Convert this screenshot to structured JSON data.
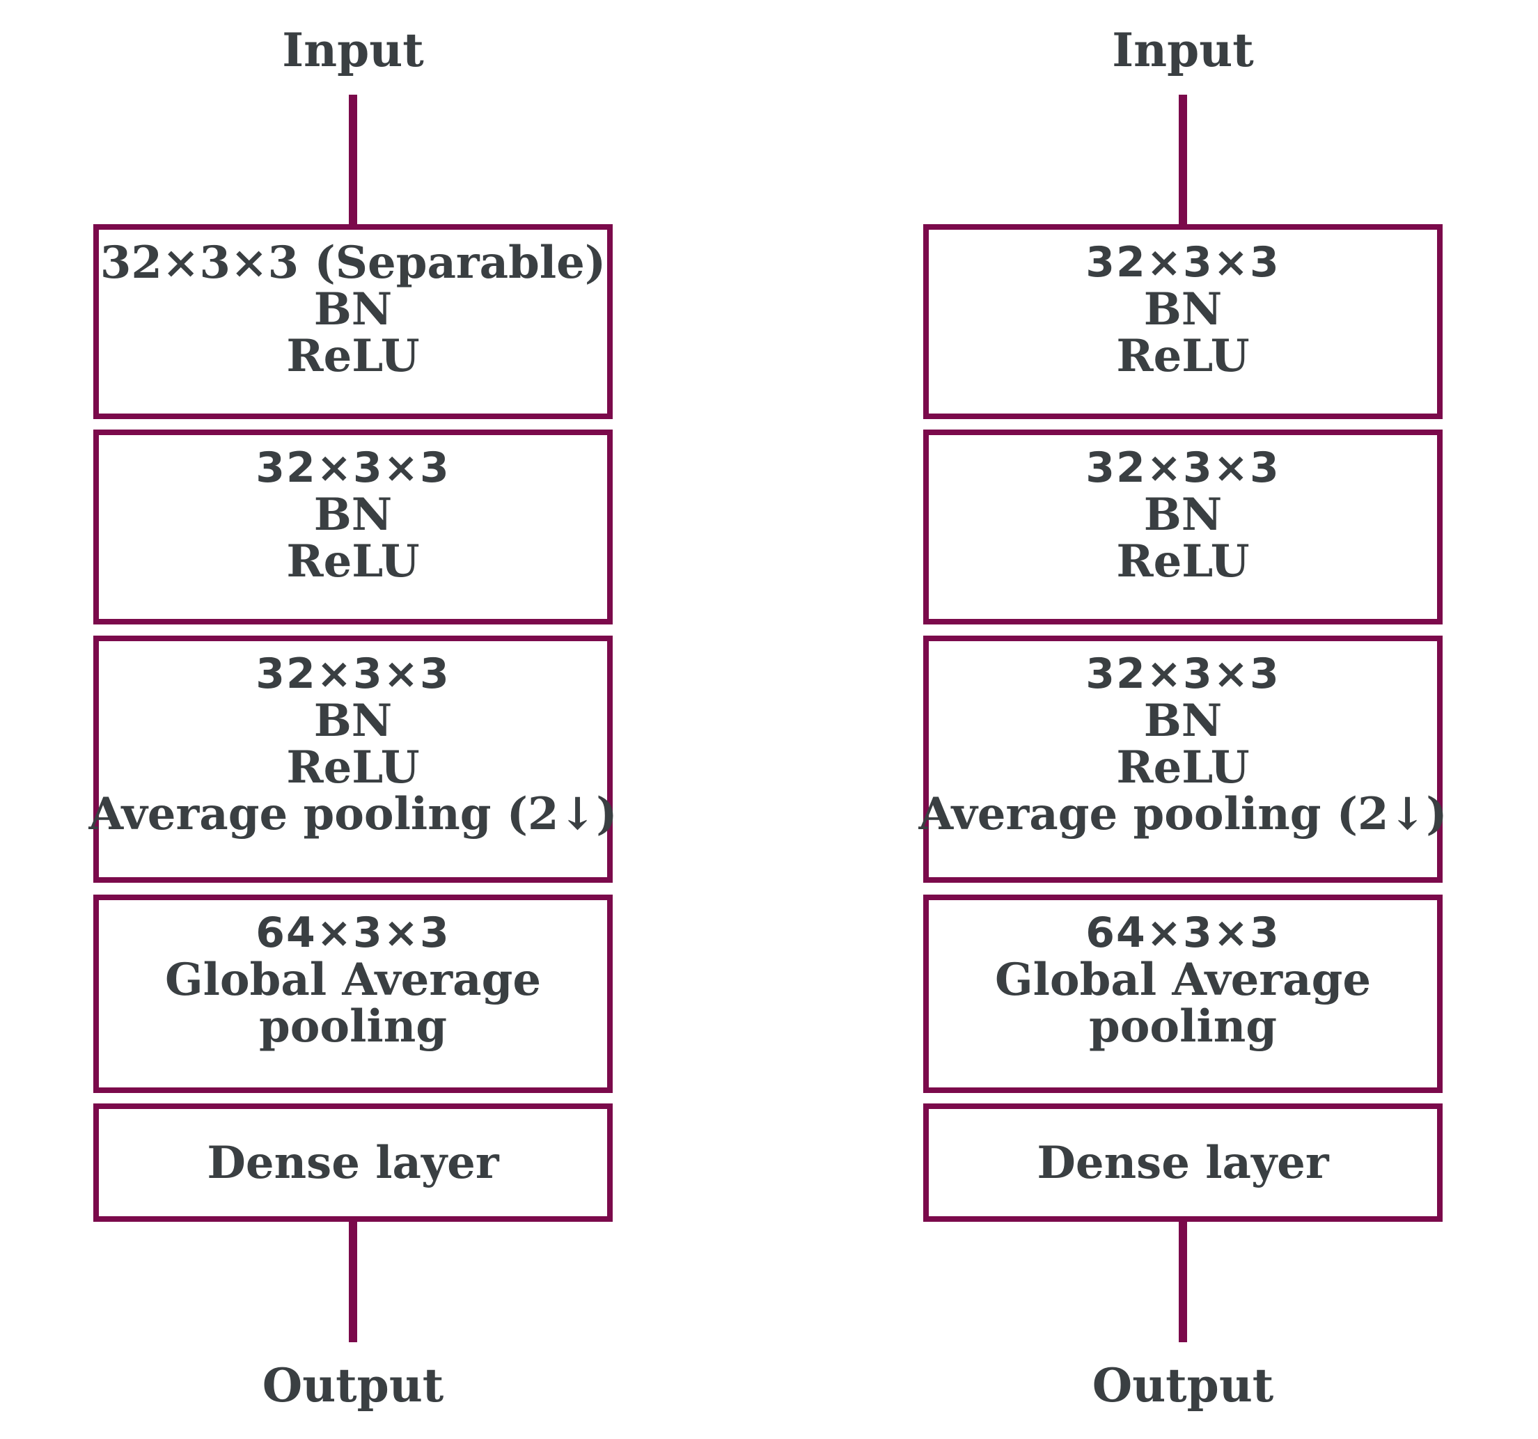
{
  "colors": {
    "accent": "#7b0a4b",
    "text": "#3a3f42",
    "background": "#ffffff"
  },
  "left": {
    "input_label": "Input",
    "output_label": "Output",
    "blocks": [
      {
        "lines": [
          "32×3×3 (Separable)",
          "BN",
          "ReLU"
        ]
      },
      {
        "lines": [
          "32×3×3",
          "BN",
          "ReLU"
        ]
      },
      {
        "lines": [
          "32×3×3",
          "BN",
          "ReLU",
          "Average pooling (2↓)"
        ]
      },
      {
        "lines": [
          "64×3×3",
          "Global Average",
          "pooling"
        ]
      },
      {
        "lines": [
          "Dense layer"
        ]
      }
    ]
  },
  "right": {
    "input_label": "Input",
    "output_label": "Output",
    "blocks": [
      {
        "lines": [
          "32×3×3",
          "BN",
          "ReLU"
        ]
      },
      {
        "lines": [
          "32×3×3",
          "BN",
          "ReLU"
        ]
      },
      {
        "lines": [
          "32×3×3",
          "BN",
          "ReLU",
          "Average pooling (2↓)"
        ]
      },
      {
        "lines": [
          "64×3×3",
          "Global Average",
          "pooling"
        ]
      },
      {
        "lines": [
          "Dense layer"
        ]
      }
    ]
  }
}
